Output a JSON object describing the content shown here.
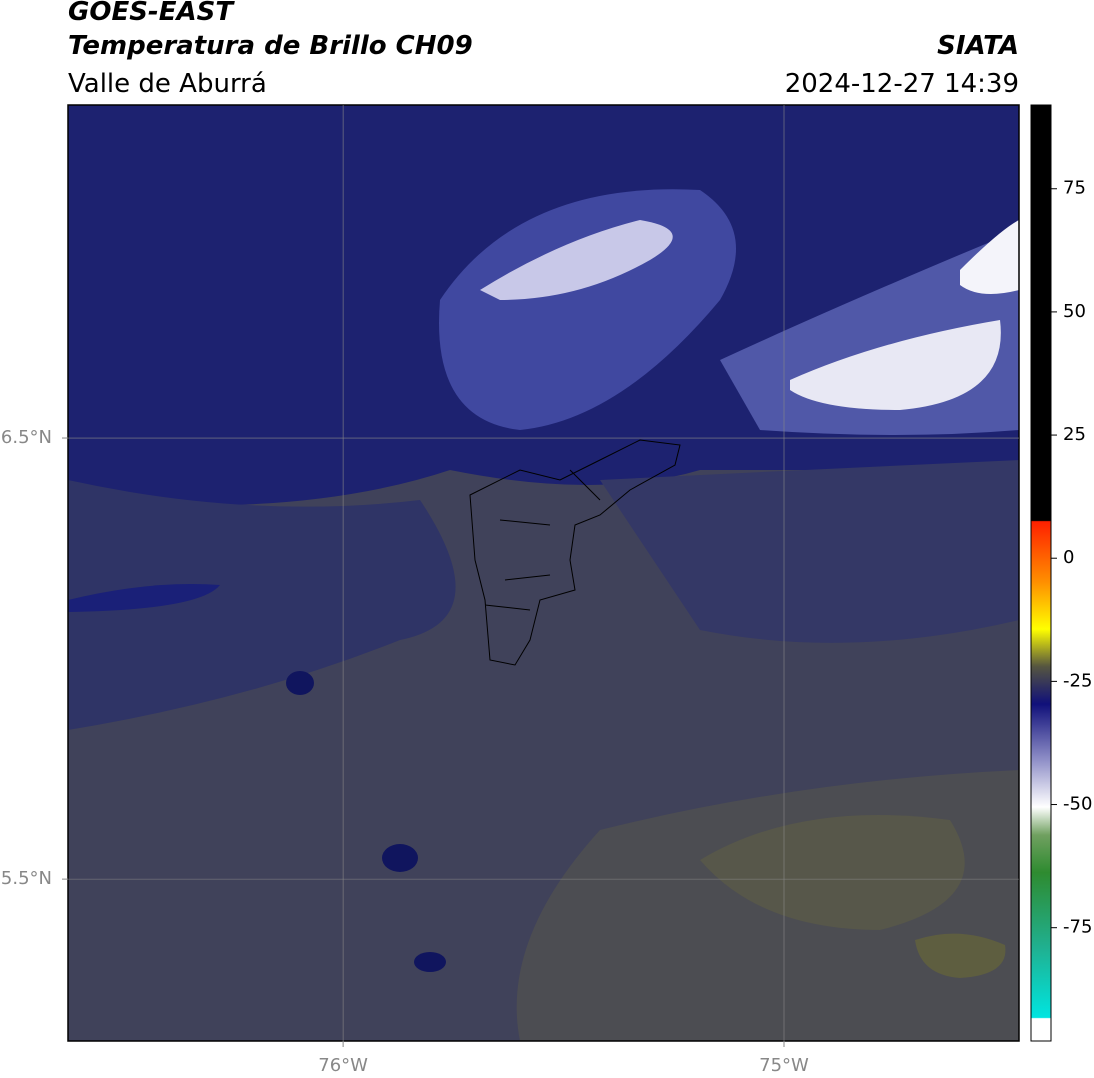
{
  "header": {
    "title": "GOES-EAST",
    "subtitle": "Temperatura de Brillo CH09",
    "region": "Valle de Aburrá",
    "source": "SIATA",
    "timestamp": "2024-12-27 14:39"
  },
  "map": {
    "lat_lim": [
      5.133,
      7.255
    ],
    "lon_lim": [
      -76.624,
      -74.467
    ],
    "lat_ticks": [
      {
        "value": 6.5,
        "label": "6.5°N"
      },
      {
        "value": 5.5,
        "label": "5.5°N"
      }
    ],
    "lon_ticks": [
      {
        "value": -76,
        "label": "76°W"
      },
      {
        "value": -75,
        "label": "75°W"
      }
    ]
  },
  "colorbar": {
    "lim": [
      -98,
      92
    ],
    "ticks": [
      75,
      50,
      25,
      0,
      -25,
      -50,
      -75
    ]
  }
}
